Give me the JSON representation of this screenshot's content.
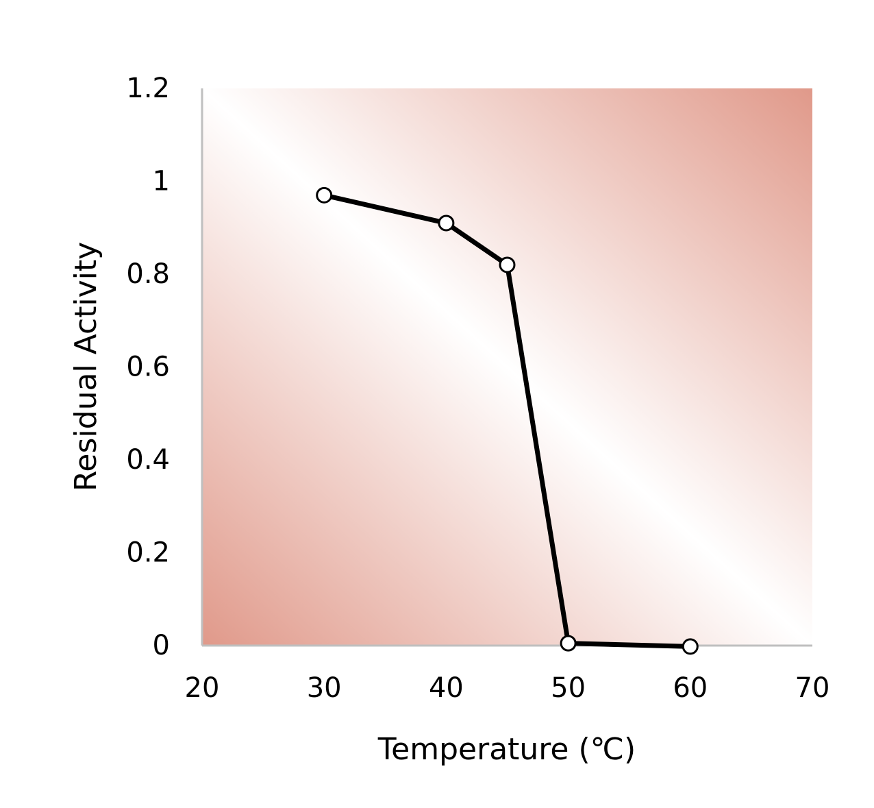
{
  "chart_data": {
    "type": "line",
    "xlabel": "Temperature (℃)",
    "ylabel": "Residual Activity",
    "xlim": [
      20,
      70
    ],
    "ylim": [
      0,
      1.2
    ],
    "xticks": [
      "20",
      "30",
      "40",
      "50",
      "60",
      "70"
    ],
    "yticks": [
      "0",
      "0.2",
      "0.4",
      "0.6",
      "0.8",
      "1",
      "1.2"
    ],
    "grid": false,
    "legend": "none",
    "background": {
      "type": "diagonal-gradient",
      "colors": [
        "#e0998a",
        "#ffffff",
        "#e0998a"
      ]
    },
    "series": [
      {
        "x": [
          30,
          40,
          45,
          50,
          60
        ],
        "y": [
          0.97,
          0.91,
          0.82,
          0.005,
          -0.002
        ],
        "line_color": "#000000",
        "marker": "open-circle"
      }
    ]
  }
}
